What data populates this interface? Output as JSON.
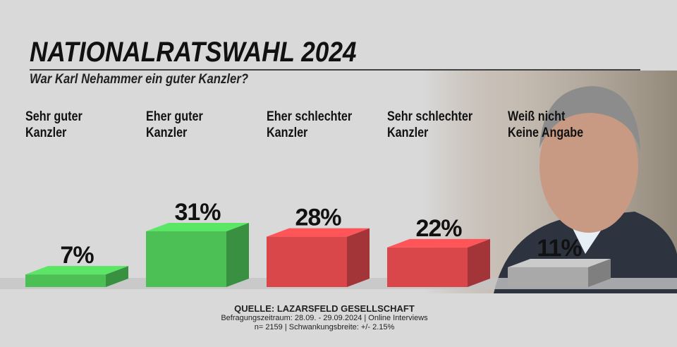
{
  "chart_data": {
    "type": "bar3d",
    "title": "NATIONALRATSWAHL 2024",
    "subtitle": "War Karl Nehammer ein guter Kanzler?",
    "categories": [
      "Sehr guter\nKanzler",
      "Eher guter\nKanzler",
      "Eher schlechter\nKanzler",
      "Sehr schlechter\nKanzler",
      "Weiß nicht\nKeine Angabe"
    ],
    "values": [
      7,
      31,
      28,
      22,
      11
    ],
    "value_labels": [
      "7%",
      "31%",
      "28%",
      "22%",
      "11%"
    ],
    "colors": [
      "#4cc055",
      "#4cc055",
      "#d9474a",
      "#d9474a",
      "#a9a9a9"
    ],
    "source": "QUELLE: LAZARSFELD GESELLSCHAFT",
    "notes": [
      "Befragungszeitraum: 28.09. - 29.09.2024 | Online Interviews",
      "n= 2159 | Schwankungsbreite: +/- 2.15%"
    ]
  }
}
